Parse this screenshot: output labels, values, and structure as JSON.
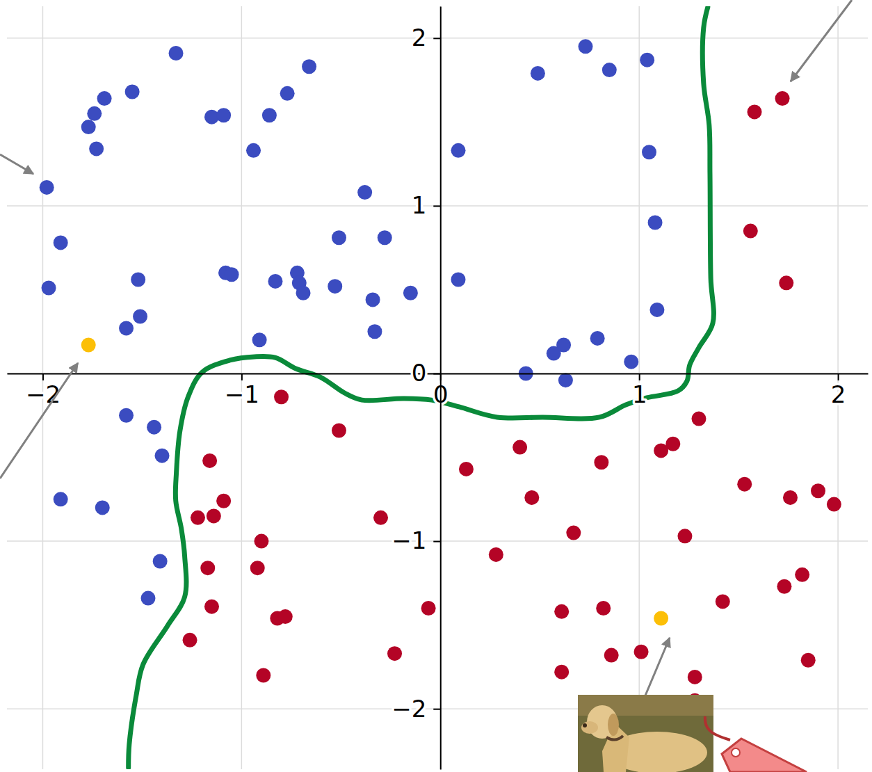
{
  "chart_data": {
    "type": "scatter",
    "xlim": [
      -2.18,
      2.15
    ],
    "ylim": [
      -2.36,
      2.19
    ],
    "xticks": [
      {
        "value": -2,
        "label": "−2"
      },
      {
        "value": -1,
        "label": "−1"
      },
      0,
      1,
      2
    ],
    "yticks": [
      2,
      1,
      0,
      {
        "value": -1,
        "label": "−1"
      },
      {
        "value": -2,
        "label": "−2"
      }
    ],
    "grid": true,
    "series": [
      {
        "color": "#3b4cc0",
        "marker": "circle",
        "x": [
          -1.33,
          -1.69,
          -1.74,
          -1.77,
          -1.73,
          -1.55,
          -1.98,
          -1.15,
          -1.09,
          -0.94,
          -0.86,
          -0.77,
          -0.66,
          -1.91,
          -1.97,
          -1.52,
          -1.58,
          -1.51,
          -1.08,
          -1.05,
          -0.83,
          -0.72,
          -0.71,
          -0.69,
          -0.91,
          -0.53,
          -0.51,
          -0.38,
          -0.28,
          -0.34,
          -0.33,
          -0.15,
          0.09,
          0.09,
          0.49,
          0.73,
          0.85,
          1.04,
          1.05,
          1.08,
          1.09,
          0.79,
          0.62,
          0.57,
          0.43,
          0.63,
          0.96,
          -1.58,
          -1.44,
          -1.4,
          -1.91,
          -1.7,
          -1.41,
          -1.47
        ],
        "values": [
          1.91,
          1.64,
          1.55,
          1.47,
          1.34,
          1.68,
          1.11,
          1.53,
          1.54,
          1.33,
          1.54,
          1.67,
          1.83,
          0.78,
          0.51,
          0.56,
          0.27,
          0.34,
          0.6,
          0.59,
          0.55,
          0.6,
          0.54,
          0.48,
          0.2,
          0.52,
          0.81,
          1.08,
          0.81,
          0.44,
          0.25,
          0.48,
          1.33,
          0.56,
          1.79,
          1.95,
          1.81,
          1.87,
          1.32,
          0.9,
          0.38,
          0.21,
          0.17,
          0.12,
          0,
          -0.04,
          0.07,
          -0.25,
          -0.32,
          -0.49,
          -0.75,
          -0.8,
          -1.12,
          -1.34
        ]
      },
      {
        "color": "#b40426",
        "marker": "circle",
        "x": [
          1.72,
          1.58,
          1.56,
          1.74,
          -0.8,
          -0.51,
          -1.16,
          -1.09,
          -1.22,
          -1.14,
          -0.9,
          -1.17,
          -0.92,
          -1.15,
          -0.82,
          -0.78,
          -1.26,
          -0.89,
          -0.3,
          -0.23,
          -0.06,
          0.13,
          0.28,
          0.4,
          0.46,
          0.67,
          0.81,
          0.61,
          0.82,
          0.86,
          0.61,
          1.01,
          1.11,
          1.17,
          1.3,
          1.23,
          1.53,
          1.76,
          1.9,
          1.98,
          1.42,
          1.73,
          1.82,
          1.28,
          1.85,
          1.28
        ],
        "values": [
          1.64,
          1.56,
          0.85,
          0.54,
          -0.14,
          -0.34,
          -0.52,
          -0.76,
          -0.86,
          -0.85,
          -1.0,
          -1.16,
          -1.16,
          -1.39,
          -1.46,
          -1.45,
          -1.59,
          -1.8,
          -0.86,
          -1.67,
          -1.4,
          -0.57,
          -1.08,
          -0.44,
          -0.74,
          -0.95,
          -0.53,
          -1.42,
          -1.4,
          -1.68,
          -1.78,
          -1.66,
          -0.46,
          -0.42,
          -0.27,
          -0.97,
          -0.66,
          -0.74,
          -0.7,
          -0.78,
          -1.36,
          -1.27,
          -1.2,
          -1.81,
          -1.71,
          -1.95
        ]
      },
      {
        "color": "#fcbf07",
        "marker": "circle",
        "x": [
          -1.77,
          1.11
        ],
        "values": [
          0.17,
          -1.46
        ]
      },
      {
        "type": "line",
        "color": "#0a8a3a",
        "line_style": "solid",
        "x": [
          -1.569,
          -1.565,
          -1.53,
          -1.495,
          -1.373,
          -1.286,
          -1.286,
          -1.303,
          -1.331,
          -1.328,
          -1.31,
          -1.268,
          -1.198,
          -1.059,
          -0.936,
          -0.831,
          -0.727,
          -0.604,
          -0.482,
          -0.395,
          -0.185,
          -0.045,
          0.094,
          0.286,
          0.514,
          0.8,
          0.933,
          1.038,
          1.195,
          1.24,
          1.254,
          1.3,
          1.37,
          1.36,
          1.356,
          1.352,
          1.324,
          1.324,
          1.345
        ],
        "values": [
          -2.35,
          -2.212,
          -1.921,
          -1.734,
          -1.506,
          -1.332,
          -1.091,
          -0.925,
          -0.759,
          -0.593,
          -0.344,
          -0.137,
          0.008,
          0.079,
          0.1,
          0.095,
          0.029,
          -0.021,
          -0.116,
          -0.158,
          -0.149,
          -0.158,
          -0.199,
          -0.261,
          -0.261,
          -0.261,
          -0.187,
          -0.145,
          -0.104,
          -0.046,
          0.05,
          0.154,
          0.299,
          0.568,
          1.191,
          1.481,
          1.73,
          2.062,
          2.185
        ]
      }
    ]
  }
}
